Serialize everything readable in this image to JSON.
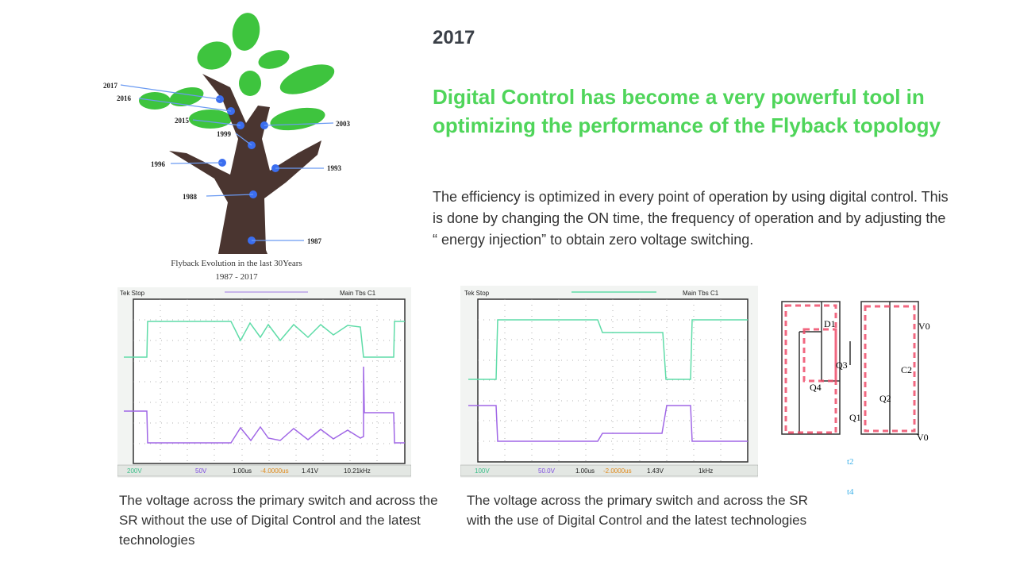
{
  "slide": {
    "year": "2017",
    "headline": "Digital Control has become a very powerful tool in optimizing the performance of the Flyback topology",
    "paragraph": "The efficiency is optimized in every point of operation by using digital control. This is done by changing the ON time, the frequency of operation and by adjusting the “ energy injection” to obtain zero voltage switching."
  },
  "tree": {
    "years": [
      "2017",
      "2016",
      "2015",
      "2003",
      "1999",
      "1996",
      "1993",
      "1988",
      "1987"
    ],
    "caption_line1": "Flyback Evolution in the last 30Years",
    "caption_line2": "1987 - 2017"
  },
  "scope1": {
    "header_left": "Tek Stop",
    "header_right": "Main Tbs C1",
    "ch1": "200V",
    "ch2": "50V",
    "timebase": "1.00us",
    "trigger": "-4.0000us",
    "level": "1.41V",
    "info": "10.21kHz",
    "caption": "The voltage across the primary switch and across the SR without the use of Digital Control and the latest technologies"
  },
  "scope2": {
    "header_left": "Tek Stop",
    "header_right": "Main Tbs C1",
    "ch1": "100V",
    "ch2": "50.0V",
    "timebase": "1.00us",
    "trigger": "-2.0000us",
    "level": "1.43V",
    "info": "1kHz",
    "caption": "The voltage across the primary switch and across the SR with the use of Digital Control and the latest technologies"
  },
  "circuit": {
    "labels": [
      "D1",
      "Q3",
      "Q4",
      "Q1",
      "Q2",
      "C2",
      "V0",
      "V0"
    ],
    "time_label_top": "t2",
    "time_label_bottom": "t4"
  },
  "colors": {
    "headline": "#4fd55a",
    "trace_green": "#5fdca8",
    "trace_purple": "#a067e6",
    "leaf": "#3ec43e",
    "trunk": "#4a3530",
    "dot": "#3b6ef0",
    "current_path": "#ef4d6a"
  }
}
